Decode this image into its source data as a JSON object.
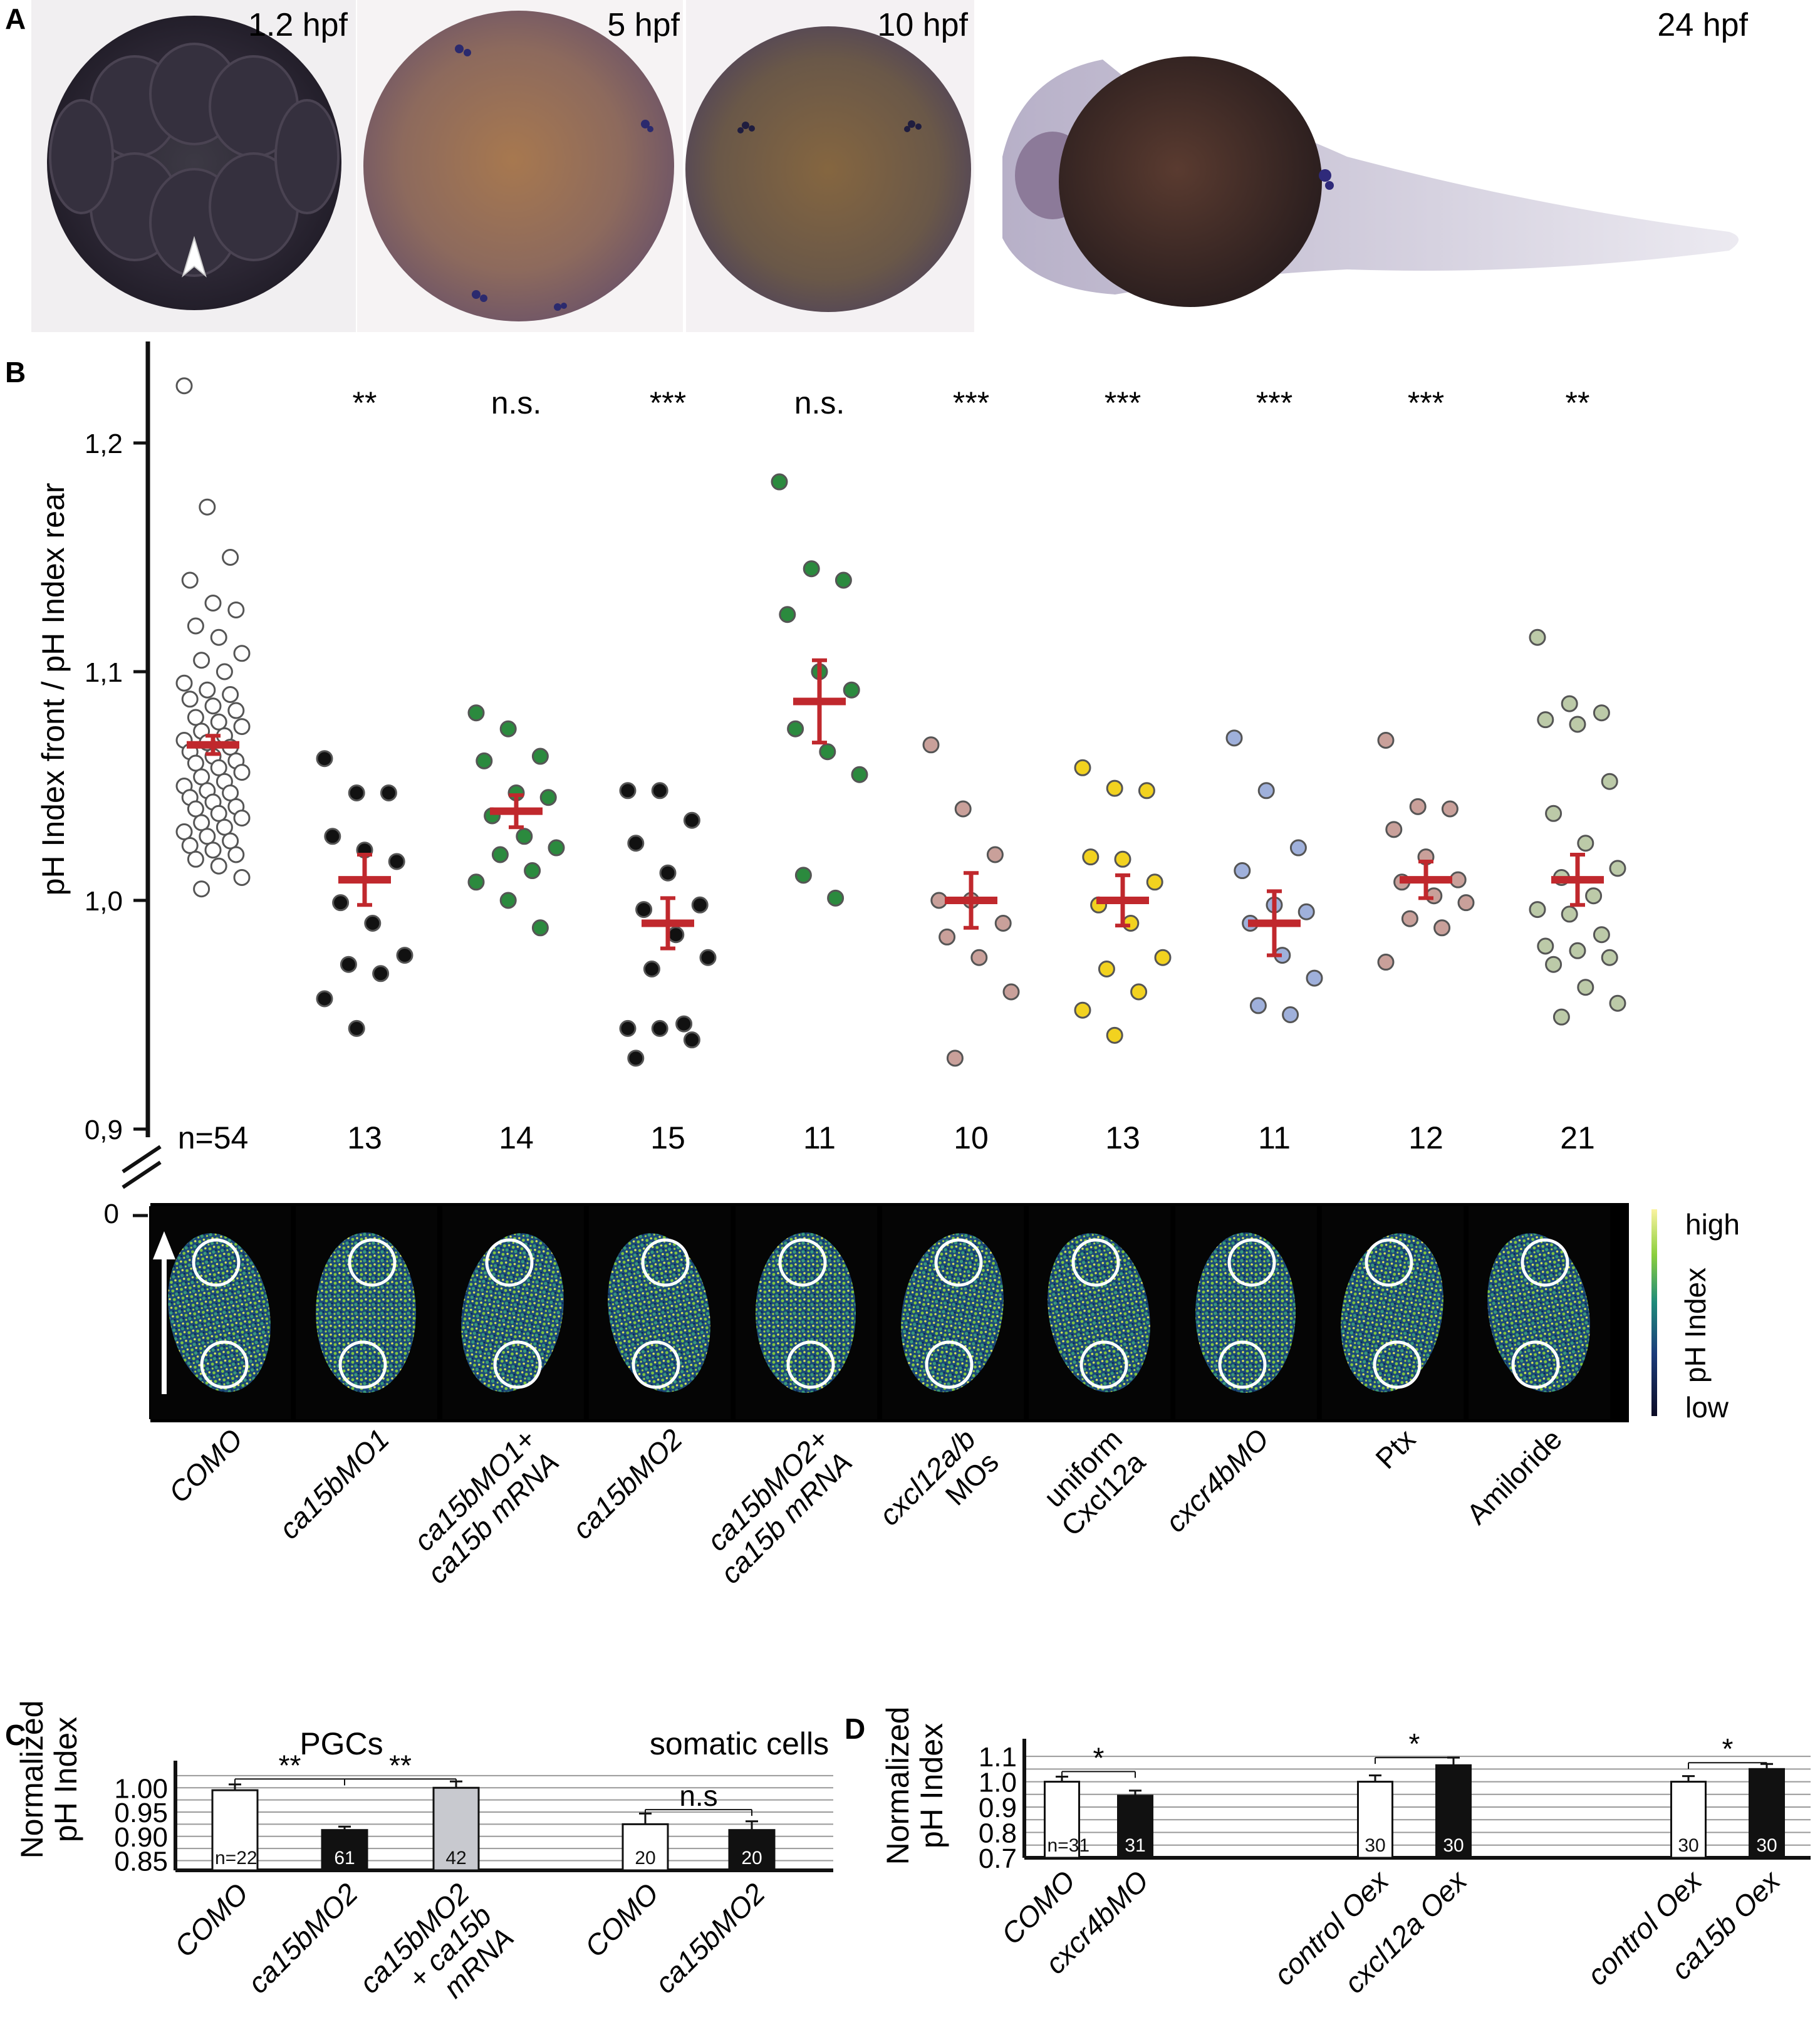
{
  "panels": {
    "A": {
      "letter": "A",
      "stages": [
        "1.2 hpf",
        "5 hpf",
        "10 hpf",
        "24 hpf"
      ]
    },
    "B": {
      "letter": "B",
      "y_label": "pH Index front / pH Index rear",
      "y_ticks": [
        "0,9",
        "1,0",
        "1,1",
        "1,2"
      ],
      "y_zero": "0",
      "n_prefix": "n=",
      "colorbar": {
        "high": "high",
        "low": "low",
        "label": "pH Index"
      }
    },
    "C": {
      "letter": "C",
      "y_label_1": "Normalized",
      "y_label_2": "pH Index",
      "group_labels": [
        "PGCs",
        "somatic cells"
      ],
      "y_ticks": [
        "0.85",
        "0.90",
        "0.95",
        "1.00"
      ],
      "n_prefix": "n=",
      "sig": [
        "**",
        "**",
        "n.s"
      ]
    },
    "D": {
      "letter": "D",
      "y_label_1": "Normalized",
      "y_label_2": "pH Index",
      "y_ticks": [
        "0.7",
        "0.8",
        "0.9",
        "1.0",
        "1.1"
      ],
      "n_prefix": "n=",
      "sig": [
        "*",
        "*",
        "*"
      ]
    }
  },
  "chart_data": [
    {
      "id": "B",
      "type": "scatter",
      "ylabel": "pH Index front / pH Index rear",
      "ylim": [
        0.9,
        1.25
      ],
      "categories": [
        {
          "label": "COMO",
          "n": "54",
          "sig": "",
          "color": "#ffffff",
          "mean": 1.068,
          "sem": 0.004,
          "values": [
            1.225,
            1.172,
            1.15,
            1.14,
            1.13,
            1.127,
            1.12,
            1.115,
            1.108,
            1.105,
            1.1,
            1.095,
            1.092,
            1.09,
            1.088,
            1.085,
            1.083,
            1.08,
            1.078,
            1.076,
            1.074,
            1.072,
            1.07,
            1.069,
            1.067,
            1.065,
            1.063,
            1.061,
            1.06,
            1.058,
            1.056,
            1.054,
            1.052,
            1.05,
            1.048,
            1.047,
            1.045,
            1.043,
            1.041,
            1.04,
            1.038,
            1.036,
            1.034,
            1.032,
            1.03,
            1.028,
            1.026,
            1.024,
            1.022,
            1.02,
            1.018,
            1.015,
            1.01,
            1.005
          ]
        },
        {
          "label": "ca15bMO1",
          "n": "13",
          "sig": "**",
          "color": "#111111",
          "mean": 1.009,
          "sem": 0.011,
          "values": [
            1.062,
            1.047,
            1.047,
            1.028,
            1.022,
            1.017,
            0.999,
            0.99,
            0.976,
            0.972,
            0.968,
            0.957,
            0.944
          ]
        },
        {
          "label": "ca15bMO1+ ca15b mRNA",
          "n": "14",
          "sig": "n.s.",
          "color": "#2b8a3e",
          "mean": 1.039,
          "sem": 0.007,
          "values": [
            1.082,
            1.075,
            1.063,
            1.061,
            1.047,
            1.045,
            1.037,
            1.028,
            1.023,
            1.02,
            1.013,
            1.008,
            1.0,
            0.988
          ]
        },
        {
          "label": "ca15bMO2",
          "n": "15",
          "sig": "***",
          "color": "#111111",
          "mean": 0.99,
          "sem": 0.011,
          "values": [
            1.048,
            1.048,
            1.035,
            1.025,
            1.012,
            0.998,
            0.996,
            0.985,
            0.975,
            0.97,
            0.946,
            0.944,
            0.944,
            0.939,
            0.931
          ]
        },
        {
          "label": "ca15bMO2+ ca15b mRNA",
          "n": "11",
          "sig": "n.s.",
          "color": "#2b8a3e",
          "mean": 1.087,
          "sem": 0.018,
          "values": [
            1.183,
            1.145,
            1.14,
            1.125,
            1.1,
            1.092,
            1.075,
            1.065,
            1.055,
            1.011,
            1.001
          ]
        },
        {
          "label": "cxcl12a/b MOs",
          "n": "10",
          "sig": "***",
          "color": "#c9a09a",
          "mean": 1.0,
          "sem": 0.012,
          "values": [
            1.068,
            1.04,
            1.02,
            1.0,
            1.0,
            0.99,
            0.984,
            0.975,
            0.96,
            0.931
          ]
        },
        {
          "label": "uniform Cxcl12a",
          "n": "13",
          "sig": "***",
          "color": "#f2d21f",
          "mean": 1.0,
          "sem": 0.011,
          "values": [
            1.058,
            1.049,
            1.048,
            1.019,
            1.018,
            1.008,
            0.998,
            0.99,
            0.975,
            0.97,
            0.96,
            0.952,
            0.941
          ]
        },
        {
          "label": "cxcr4bMO",
          "n": "11",
          "sig": "***",
          "color": "#9fb0db",
          "mean": 0.99,
          "sem": 0.014,
          "values": [
            1.071,
            1.048,
            1.023,
            1.013,
            0.998,
            0.995,
            0.99,
            0.976,
            0.966,
            0.954,
            0.95
          ]
        },
        {
          "label": "Ptx",
          "n": "12",
          "sig": "***",
          "color": "#c9a09a",
          "mean": 1.009,
          "sem": 0.008,
          "values": [
            1.07,
            1.041,
            1.04,
            1.031,
            1.019,
            1.009,
            1.008,
            1.002,
            0.999,
            0.992,
            0.988,
            0.973
          ]
        },
        {
          "label": "Amiloride",
          "n": "21",
          "sig": "**",
          "color": "#bccaa8",
          "mean": 1.009,
          "sem": 0.011,
          "values": [
            1.115,
            1.086,
            1.082,
            1.079,
            1.077,
            1.052,
            1.038,
            1.025,
            1.014,
            1.01,
            1.002,
            0.996,
            0.994,
            0.985,
            0.98,
            0.978,
            0.975,
            0.972,
            0.962,
            0.955,
            0.949
          ]
        }
      ]
    },
    {
      "id": "C",
      "type": "bar",
      "ylim": [
        0.83,
        1.03
      ],
      "groups": [
        "PGCs",
        "somatic cells"
      ],
      "bars": [
        {
          "label": "COMO",
          "value": 0.995,
          "err": 0.012,
          "color": "#ffffff",
          "n": "22",
          "group": "PGCs"
        },
        {
          "label": "ca15bMO2",
          "value": 0.913,
          "err": 0.007,
          "color": "#111111",
          "n": "61",
          "group": "PGCs"
        },
        {
          "label": "ca15bMO2 + ca15b mRNA",
          "value": 1.0,
          "err": 0.013,
          "color": "#c8c9cf",
          "n": "42",
          "group": "PGCs"
        },
        {
          "label": "COMO",
          "value": 0.925,
          "err": 0.022,
          "color": "#ffffff",
          "n": "20",
          "group": "somatic cells"
        },
        {
          "label": "ca15bMO2",
          "value": 0.913,
          "err": 0.018,
          "color": "#111111",
          "n": "20",
          "group": "somatic cells"
        }
      ]
    },
    {
      "id": "D",
      "type": "bar",
      "ylim": [
        0.7,
        1.12
      ],
      "bars": [
        {
          "label": "COMO",
          "value": 1.0,
          "err": 0.02,
          "color": "#ffffff",
          "n": "31"
        },
        {
          "label": "cxcr4bMO",
          "value": 0.945,
          "err": 0.02,
          "color": "#111111",
          "n": "31"
        },
        {
          "label": "control Oex",
          "value": 1.0,
          "err": 0.025,
          "color": "#ffffff",
          "n": "30"
        },
        {
          "label": "cxcl12a Oex",
          "value": 1.065,
          "err": 0.03,
          "color": "#111111",
          "n": "30"
        },
        {
          "label": "control Oex",
          "value": 1.0,
          "err": 0.022,
          "color": "#ffffff",
          "n": "30"
        },
        {
          "label": "ca15b Oex",
          "value": 1.05,
          "err": 0.02,
          "color": "#111111",
          "n": "30"
        }
      ]
    }
  ]
}
